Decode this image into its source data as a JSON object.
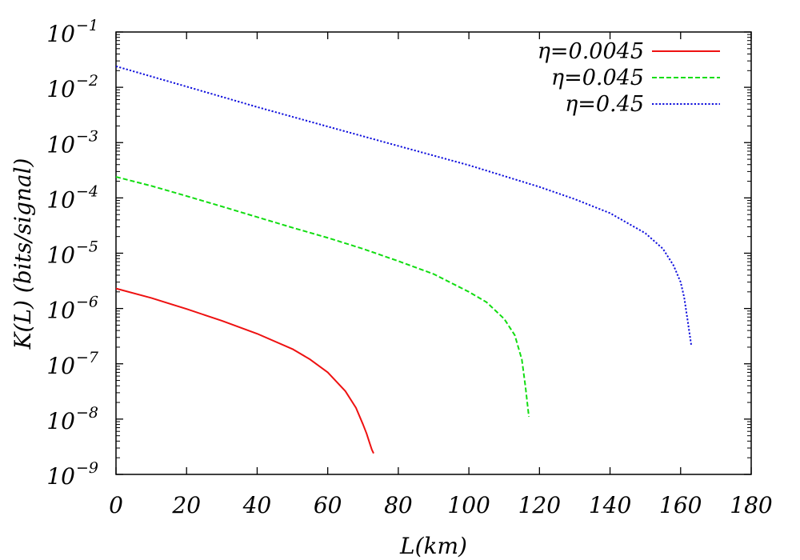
{
  "chart_data": {
    "type": "line",
    "xlabel": "L(km)",
    "ylabel": "K(L) (bits/signal)",
    "xlim": [
      0,
      180
    ],
    "ylim": [
      1e-09,
      0.1
    ],
    "yscale": "log",
    "grid": false,
    "legend_position": "top-right",
    "x_ticks": [
      0,
      20,
      40,
      60,
      80,
      100,
      120,
      140,
      160,
      180
    ],
    "y_ticks": [
      {
        "base": "10",
        "exp": "−9"
      },
      {
        "base": "10",
        "exp": "−8"
      },
      {
        "base": "10",
        "exp": "−7"
      },
      {
        "base": "10",
        "exp": "−6"
      },
      {
        "base": "10",
        "exp": "−5"
      },
      {
        "base": "10",
        "exp": "−4"
      },
      {
        "base": "10",
        "exp": "−3"
      },
      {
        "base": "10",
        "exp": "−2"
      },
      {
        "base": "10",
        "exp": "−1"
      }
    ],
    "series": [
      {
        "name": "η=0.0045",
        "color": "#ee1111",
        "dash": "solid",
        "x": [
          0,
          10,
          20,
          30,
          40,
          50,
          55,
          60,
          65,
          68,
          70,
          71,
          72,
          72.5,
          73
        ],
        "y": [
          2.3e-06,
          1.55e-06,
          9.8e-07,
          6e-07,
          3.5e-07,
          1.85e-07,
          1.2e-07,
          7e-08,
          3.2e-08,
          1.6e-08,
          8e-09,
          5.5e-09,
          3.5e-09,
          2.8e-09,
          2.4e-09
        ]
      },
      {
        "name": "η=0.045",
        "color": "#11dd11",
        "dash": "dashed",
        "x": [
          0,
          10,
          20,
          30,
          40,
          50,
          60,
          70,
          80,
          90,
          100,
          105,
          110,
          113,
          115,
          116,
          117
        ],
        "y": [
          0.00024,
          0.000165,
          0.000108,
          7e-05,
          4.5e-05,
          2.9e-05,
          1.9e-05,
          1.2e-05,
          7.2e-06,
          4.2e-06,
          2e-06,
          1.3e-06,
          6.5e-07,
          3.3e-07,
          1.2e-07,
          4e-08,
          1.1e-08
        ]
      },
      {
        "name": "η=0.45",
        "color": "#1111dd",
        "dash": "dotted",
        "x": [
          0,
          20,
          40,
          60,
          80,
          100,
          120,
          130,
          140,
          150,
          155,
          158,
          160,
          161,
          162,
          163
        ],
        "y": [
          0.024,
          0.0103,
          0.0044,
          0.00195,
          0.00087,
          0.00039,
          0.000158,
          9.5e-05,
          5.3e-05,
          2.3e-05,
          1.2e-05,
          6e-06,
          3e-06,
          1.6e-06,
          6e-07,
          2.2e-07
        ]
      }
    ]
  }
}
